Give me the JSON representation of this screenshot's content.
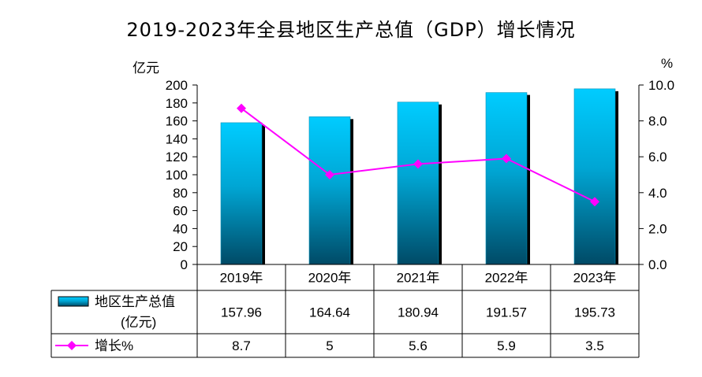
{
  "title": "2019-2023年全县地区生产总值（GDP）增长情况",
  "chart_data": {
    "type": "bar",
    "title": "2019-2023年全县地区生产总值（GDP）增长情况",
    "categories": [
      "2019年",
      "2020年",
      "2021年",
      "2022年",
      "2023年"
    ],
    "series": [
      {
        "name": "地区生产总值",
        "name_line2": "(亿元)",
        "type": "bar",
        "axis": "left",
        "values": [
          157.96,
          164.64,
          180.94,
          191.57,
          195.73
        ],
        "value_labels": [
          "157.96",
          "164.64",
          "180.94",
          "191.57",
          "195.73"
        ]
      },
      {
        "name": "增长%",
        "type": "line",
        "axis": "right",
        "values": [
          8.7,
          5,
          5.6,
          5.9,
          3.5
        ],
        "value_labels": [
          "8.7",
          "5",
          "5.6",
          "5.9",
          "3.5"
        ]
      }
    ],
    "y_left": {
      "unit": "亿元",
      "ylim": [
        0,
        200
      ],
      "ticks": [
        "0",
        "20",
        "40",
        "60",
        "80",
        "100",
        "120",
        "140",
        "160",
        "180",
        "200"
      ]
    },
    "y_right": {
      "unit": "%",
      "ylim": [
        0,
        10
      ],
      "ticks": [
        "0.0",
        "2.0",
        "4.0",
        "6.0",
        "8.0",
        "10.0"
      ]
    },
    "grid": false,
    "legend": "data-table",
    "colors": {
      "bar_top": "#00ccff",
      "bar_bottom": "#004a66",
      "bar_shadow": "#000000",
      "line": "#ff00ff",
      "axis": "#000000"
    }
  }
}
